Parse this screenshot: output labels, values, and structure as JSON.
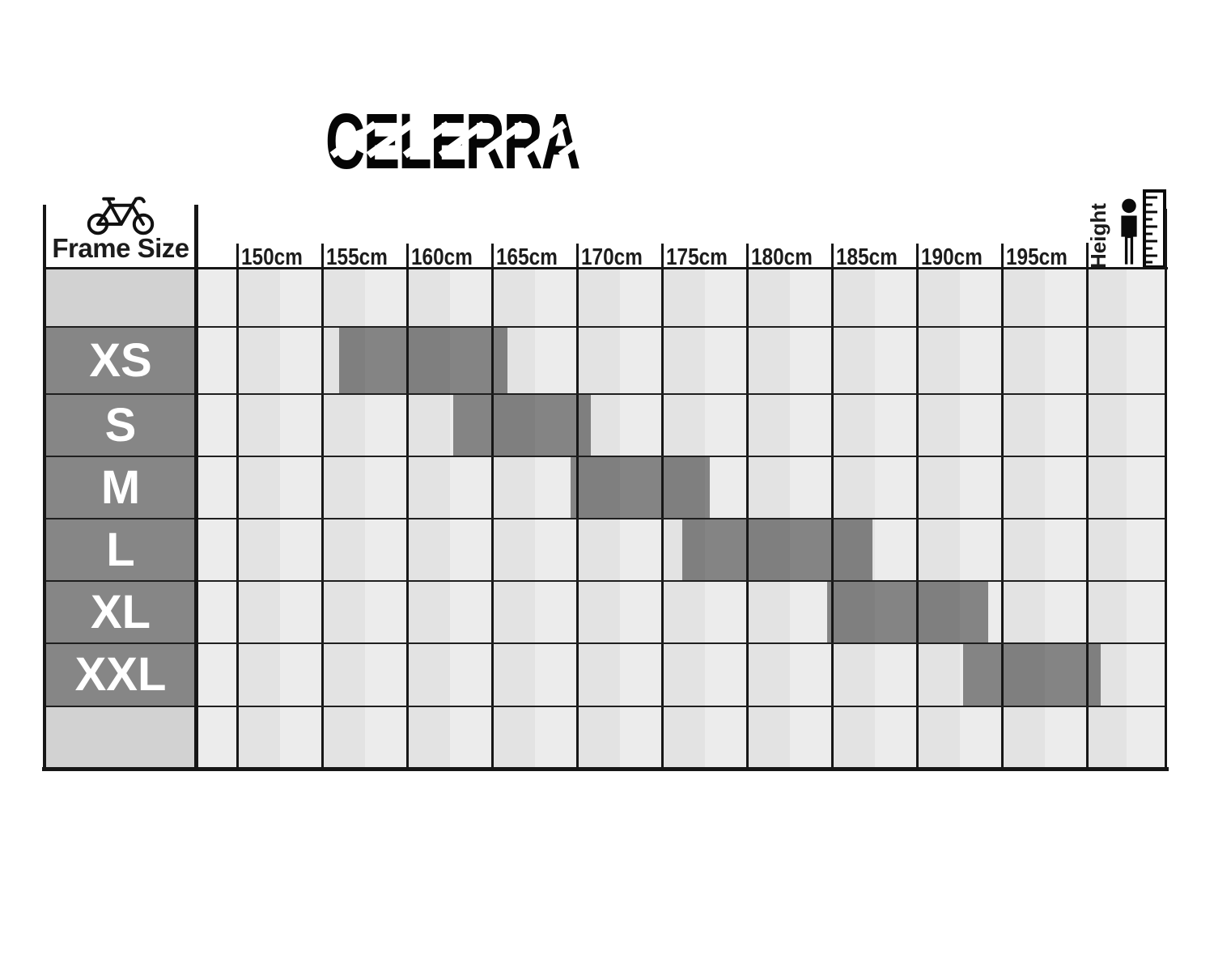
{
  "brand": {
    "name": "CELERRA"
  },
  "table": {
    "frame_size_label": "Frame Size",
    "height_label": "Height",
    "row_labels": [
      "",
      "XS",
      "S",
      "M",
      "L",
      "XL",
      "XXL",
      ""
    ],
    "tick_labels": [
      "150cm",
      "155cm",
      "160cm",
      "165cm",
      "170cm",
      "175cm",
      "180cm",
      "185cm",
      "190cm",
      "195cm"
    ]
  },
  "icons": {
    "frame_column_icon": "bicycle-icon",
    "height_column_icons": [
      "person-icon",
      "ruler-icon"
    ]
  },
  "chart_data": {
    "type": "bar",
    "subtype": "horizontal-range-size-guide",
    "title": "CELERRA",
    "ylabel": "Frame Size",
    "xlabel": "Height",
    "x_unit": "cm",
    "x_ticks": [
      150,
      155,
      160,
      165,
      170,
      175,
      180,
      185,
      190,
      195
    ],
    "x_tick_labels": [
      "150cm",
      "155cm",
      "160cm",
      "165cm",
      "170cm",
      "175cm",
      "180cm",
      "185cm",
      "190cm",
      "195cm"
    ],
    "xlim": [
      147.6,
      204.7
    ],
    "grid": true,
    "legend": false,
    "categories": [
      "XS",
      "S",
      "M",
      "L",
      "XL",
      "XXL"
    ],
    "series": [
      {
        "name": "XS",
        "height_range_cm": [
          156.0,
          165.9
        ]
      },
      {
        "name": "S",
        "height_range_cm": [
          162.7,
          170.8
        ]
      },
      {
        "name": "M",
        "height_range_cm": [
          169.6,
          177.8
        ]
      },
      {
        "name": "L",
        "height_range_cm": [
          176.2,
          187.4
        ]
      },
      {
        "name": "XL",
        "height_range_cm": [
          184.7,
          194.2
        ]
      },
      {
        "name": "XXL",
        "height_range_cm": [
          192.7,
          200.8
        ]
      }
    ]
  },
  "colors": {
    "bar_fill": "#808080",
    "size_label_cell": "#868686",
    "empty_label_cell": "#d2d2d2",
    "stripe_dark": "#e3e3e3",
    "stripe_light": "#ececec",
    "grid_line": "#161616",
    "row_line": "#1f1f1f",
    "text": "#1a1a1a",
    "size_label_text": "#ffffff"
  }
}
